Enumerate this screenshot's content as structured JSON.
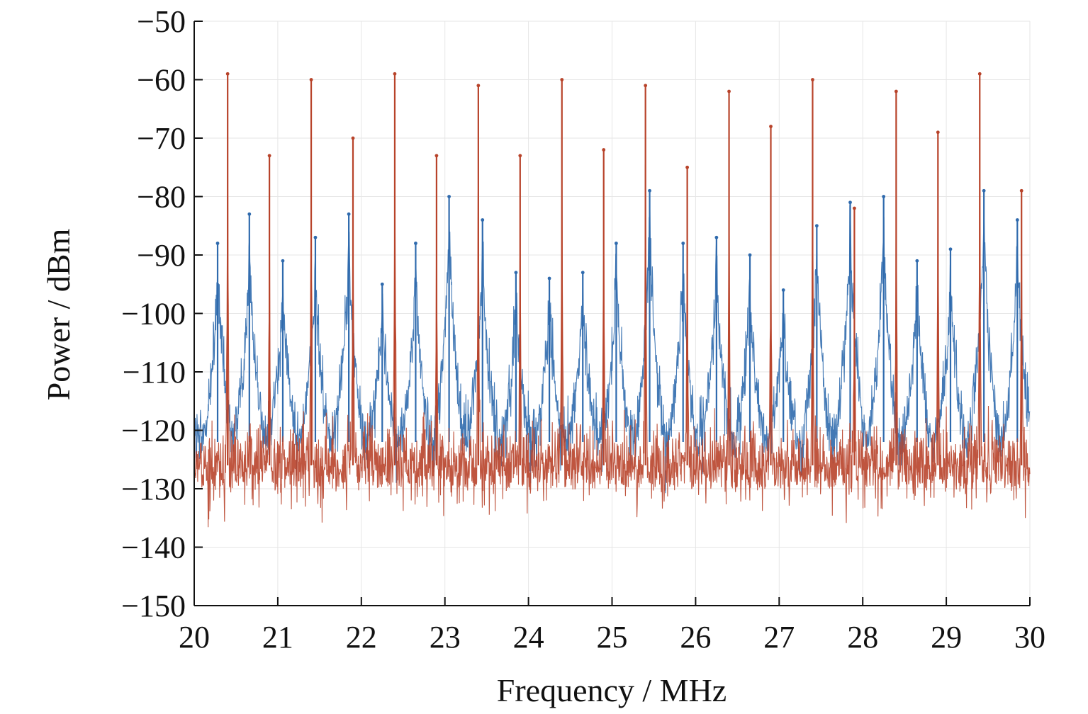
{
  "chart_data": {
    "type": "line",
    "title": "",
    "xlabel": "Frequency / MHz",
    "ylabel": "Power / dBm",
    "xlim": [
      20,
      30
    ],
    "ylim": [
      -150,
      -50
    ],
    "x_ticks": [
      20,
      21,
      22,
      23,
      24,
      25,
      26,
      27,
      28,
      29,
      30
    ],
    "y_ticks": [
      -150,
      -140,
      -130,
      -120,
      -110,
      -100,
      -90,
      -80,
      -70,
      -60,
      -50
    ],
    "x_tick_labels": [
      "20",
      "21",
      "22",
      "23",
      "24",
      "25",
      "26",
      "27",
      "28",
      "29",
      "30"
    ],
    "y_tick_labels": [
      "−150",
      "−140",
      "−130",
      "−120",
      "−110",
      "−100",
      "−90",
      "−80",
      "−70",
      "−60",
      "−50"
    ],
    "grid": true,
    "legend": "none",
    "series": [
      {
        "color": "#2f6aad",
        "noise_floor": -122,
        "noise_min": -140,
        "peaks": [
          {
            "x": 20.28,
            "y": -88
          },
          {
            "x": 20.66,
            "y": -83
          },
          {
            "x": 21.06,
            "y": -91
          },
          {
            "x": 21.45,
            "y": -87
          },
          {
            "x": 21.85,
            "y": -83
          },
          {
            "x": 22.25,
            "y": -95
          },
          {
            "x": 22.65,
            "y": -88
          },
          {
            "x": 23.05,
            "y": -80
          },
          {
            "x": 23.45,
            "y": -84
          },
          {
            "x": 23.85,
            "y": -93
          },
          {
            "x": 24.25,
            "y": -94
          },
          {
            "x": 24.65,
            "y": -93
          },
          {
            "x": 25.05,
            "y": -88
          },
          {
            "x": 25.45,
            "y": -79
          },
          {
            "x": 25.85,
            "y": -88
          },
          {
            "x": 26.25,
            "y": -87
          },
          {
            "x": 26.65,
            "y": -90
          },
          {
            "x": 27.05,
            "y": -96
          },
          {
            "x": 27.45,
            "y": -85
          },
          {
            "x": 27.85,
            "y": -81
          },
          {
            "x": 28.25,
            "y": -80
          },
          {
            "x": 28.65,
            "y": -91
          },
          {
            "x": 29.05,
            "y": -89
          },
          {
            "x": 29.45,
            "y": -79
          },
          {
            "x": 29.85,
            "y": -84
          }
        ]
      },
      {
        "color": "#b8432a",
        "noise_floor": -126,
        "noise_min": -142,
        "peaks": [
          {
            "x": 20.4,
            "y": -59
          },
          {
            "x": 20.9,
            "y": -73
          },
          {
            "x": 21.4,
            "y": -60
          },
          {
            "x": 21.9,
            "y": -70
          },
          {
            "x": 22.4,
            "y": -59
          },
          {
            "x": 22.9,
            "y": -73
          },
          {
            "x": 23.4,
            "y": -61
          },
          {
            "x": 23.9,
            "y": -73
          },
          {
            "x": 24.4,
            "y": -60
          },
          {
            "x": 24.9,
            "y": -72
          },
          {
            "x": 25.4,
            "y": -61
          },
          {
            "x": 25.9,
            "y": -75
          },
          {
            "x": 26.4,
            "y": -62
          },
          {
            "x": 26.9,
            "y": -68
          },
          {
            "x": 27.4,
            "y": -60
          },
          {
            "x": 27.9,
            "y": -82
          },
          {
            "x": 28.4,
            "y": -62
          },
          {
            "x": 28.9,
            "y": -69
          },
          {
            "x": 29.4,
            "y": -59
          },
          {
            "x": 29.9,
            "y": -79
          }
        ]
      }
    ]
  }
}
